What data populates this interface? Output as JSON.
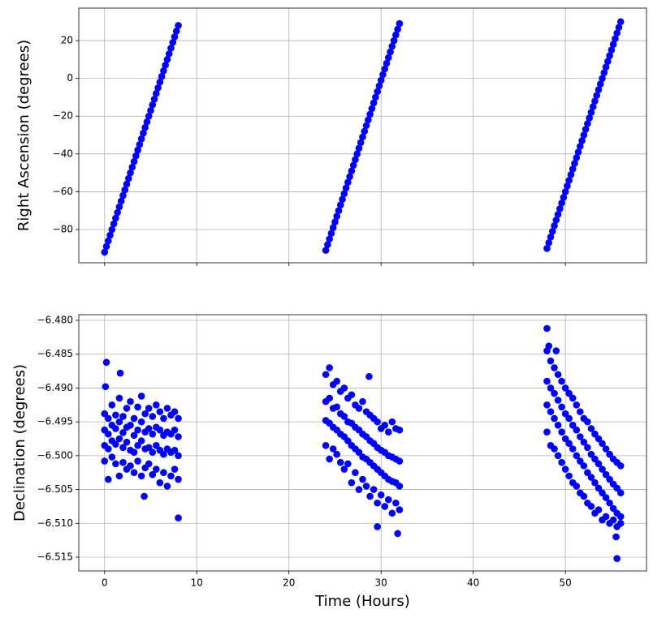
{
  "chart_data": [
    {
      "type": "scatter",
      "ylabel": "Right Ascension (degrees)",
      "xlim": [
        -2.8,
        58.8
      ],
      "ylim": [
        -97.6,
        37.2
      ],
      "xticks": [
        0,
        10,
        20,
        30,
        40,
        50
      ],
      "show_xtick_labels": false,
      "yticks": [
        {
          "value": -80,
          "label": "−80"
        },
        {
          "value": -60,
          "label": "−60"
        },
        {
          "value": -40,
          "label": "−40"
        },
        {
          "value": -20,
          "label": "−20"
        },
        0,
        20
      ],
      "grid": true,
      "x": [
        0,
        0.2,
        0.4,
        0.6,
        0.8,
        1,
        1.2,
        1.4,
        1.6,
        1.8,
        2,
        2.2,
        2.4,
        2.6,
        2.8,
        3,
        3.2,
        3.4,
        3.6,
        3.8,
        4,
        4.2,
        4.4,
        4.6,
        4.8,
        5,
        5.2,
        5.4,
        5.6,
        5.8,
        6,
        6.2,
        6.4,
        6.6,
        6.8,
        7,
        7.2,
        7.4,
        7.6,
        7.8,
        8,
        24,
        24.2,
        24.4,
        24.6,
        24.8,
        25,
        25.2,
        25.4,
        25.6,
        25.8,
        26,
        26.2,
        26.4,
        26.6,
        26.8,
        27,
        27.2,
        27.4,
        27.6,
        27.8,
        28,
        28.2,
        28.4,
        28.6,
        28.8,
        29,
        29.2,
        29.4,
        29.6,
        29.8,
        30,
        30.2,
        30.4,
        30.6,
        30.8,
        31,
        31.2,
        31.4,
        31.6,
        31.8,
        32,
        48,
        48.2,
        48.4,
        48.6,
        48.8,
        49,
        49.2,
        49.4,
        49.6,
        49.8,
        50,
        50.2,
        50.4,
        50.6,
        50.8,
        51,
        51.2,
        51.4,
        51.6,
        51.8,
        52,
        52.2,
        52.4,
        52.6,
        52.8,
        53,
        53.2,
        53.4,
        53.6,
        53.8,
        54,
        54.2,
        54.4,
        54.6,
        54.8,
        55,
        55.2,
        55.4,
        55.6,
        55.8,
        56
      ],
      "series": [
        {
          "color": "#0000ff",
          "values": [
            -92,
            -89,
            -86,
            -83,
            -80,
            -77,
            -74,
            -71,
            -68,
            -65,
            -62,
            -59,
            -56,
            -53,
            -50,
            -47,
            -44,
            -41,
            -38,
            -35,
            -32,
            -29,
            -26,
            -23,
            -20,
            -17,
            -14,
            -11,
            -8,
            -5,
            -2,
            1,
            4,
            7,
            10,
            13,
            16,
            19,
            22,
            25,
            28,
            -91,
            -88,
            -85,
            -82,
            -79,
            -76,
            -73,
            -70,
            -67,
            -64,
            -61,
            -58,
            -55,
            -52,
            -49,
            -46,
            -43,
            -40,
            -37,
            -34,
            -31,
            -28,
            -25,
            -22,
            -19,
            -16,
            -13,
            -10,
            -7,
            -4,
            -1,
            2,
            5,
            8,
            11,
            14,
            17,
            20,
            23,
            26,
            29,
            -90,
            -87,
            -84,
            -81,
            -78,
            -75,
            -72,
            -69,
            -66,
            -63,
            -60,
            -57,
            -54,
            -51,
            -48,
            -45,
            -42,
            -39,
            -36,
            -33,
            -30,
            -27,
            -24,
            -21,
            -18,
            -15,
            -12,
            -9,
            -6,
            -3,
            0,
            3,
            6,
            9,
            12,
            15,
            18,
            21,
            24,
            27,
            30
          ]
        }
      ]
    },
    {
      "type": "scatter",
      "xlabel": "Time (Hours)",
      "ylabel": "Declination (degrees)",
      "xlim": [
        -2.8,
        58.8
      ],
      "ylim": [
        -6.51704,
        -6.47916
      ],
      "xticks": [
        0,
        10,
        20,
        30,
        40,
        50
      ],
      "show_xtick_labels": true,
      "yticks": [
        {
          "value": -6.515,
          "label": "−6.515"
        },
        {
          "value": -6.51,
          "label": "−6.510"
        },
        {
          "value": -6.505,
          "label": "−6.505"
        },
        {
          "value": -6.5,
          "label": "−6.500"
        },
        {
          "value": -6.495,
          "label": "−6.495"
        },
        {
          "value": -6.49,
          "label": "−6.490"
        },
        {
          "value": -6.485,
          "label": "−6.485"
        },
        {
          "value": -6.48,
          "label": "−6.480"
        }
      ],
      "grid": true,
      "x": [
        0,
        0,
        0,
        0,
        0.4,
        0.4,
        0.4,
        0.4,
        0.8,
        0.8,
        0.8,
        0.8,
        1.2,
        1.2,
        1.2,
        1.2,
        1.6,
        1.6,
        1.6,
        1.6,
        2,
        2,
        2,
        2,
        2.4,
        2.4,
        2.4,
        2.4,
        2.8,
        2.8,
        2.8,
        2.8,
        3.2,
        3.2,
        3.2,
        3.2,
        3.6,
        3.6,
        3.6,
        3.6,
        4,
        4,
        4,
        4,
        4.4,
        4.4,
        4.4,
        4.4,
        4.8,
        4.8,
        4.8,
        4.8,
        5.2,
        5.2,
        5.2,
        5.2,
        5.6,
        5.6,
        5.6,
        5.6,
        6,
        6,
        6,
        6,
        6.4,
        6.4,
        6.4,
        6.4,
        6.8,
        6.8,
        6.8,
        6.8,
        7.2,
        7.2,
        7.2,
        7.2,
        7.6,
        7.6,
        7.6,
        7.6,
        8,
        8,
        8,
        8,
        0.2,
        8,
        4.3,
        0.1,
        1.7,
        24,
        24,
        24,
        24,
        24.4,
        24.4,
        24.4,
        24.4,
        24.8,
        24.8,
        24.8,
        24.8,
        25.2,
        25.2,
        25.2,
        25.2,
        25.6,
        25.6,
        25.6,
        25.6,
        26,
        26,
        26,
        26,
        26.4,
        26.4,
        26.4,
        26.4,
        26.8,
        26.8,
        26.8,
        26.8,
        27.2,
        27.2,
        27.2,
        27.2,
        27.6,
        27.6,
        27.6,
        27.6,
        28,
        28,
        28,
        28,
        28.4,
        28.4,
        28.4,
        28.4,
        28.8,
        28.8,
        28.8,
        28.8,
        29.2,
        29.2,
        29.2,
        29.2,
        29.6,
        29.6,
        29.6,
        29.6,
        30,
        30,
        30,
        30,
        30.4,
        30.4,
        30.4,
        30.4,
        30.8,
        30.8,
        30.8,
        30.8,
        31.2,
        31.2,
        31.2,
        31.2,
        31.6,
        31.6,
        31.6,
        31.6,
        32,
        32,
        32,
        32,
        29.6,
        31.8,
        28.7,
        48,
        48,
        48,
        48,
        48.4,
        48.4,
        48.4,
        48.4,
        48.8,
        48.8,
        48.8,
        48.8,
        49.2,
        49.2,
        49.2,
        49.2,
        49.6,
        49.6,
        49.6,
        49.6,
        50,
        50,
        50,
        50,
        50.4,
        50.4,
        50.4,
        50.4,
        50.8,
        50.8,
        50.8,
        50.8,
        51.2,
        51.2,
        51.2,
        51.2,
        51.6,
        51.6,
        51.6,
        51.6,
        52,
        52,
        52,
        52,
        52.4,
        52.4,
        52.4,
        52.4,
        52.8,
        52.8,
        52.8,
        52.8,
        53.2,
        53.2,
        53.2,
        53.2,
        53.6,
        53.6,
        53.6,
        53.6,
        54,
        54,
        54,
        54,
        54.4,
        54.4,
        54.4,
        54.4,
        54.8,
        54.8,
        54.8,
        54.8,
        55.2,
        55.2,
        55.2,
        55.2,
        55.6,
        55.6,
        55.6,
        55.6,
        56,
        56,
        56,
        56,
        48,
        48.2,
        55.6,
        55.5,
        49
      ],
      "series": [
        {
          "color": "#0000ff",
          "values": [
            -6.4938,
            -6.4962,
            -6.4985,
            -6.5008,
            -6.4945,
            -6.4968,
            -6.499,
            -6.5035,
            -6.4925,
            -6.4955,
            -6.4978,
            -6.5002,
            -6.494,
            -6.496,
            -6.4983,
            -6.5012,
            -6.4915,
            -6.495,
            -6.4975,
            -6.503,
            -6.4942,
            -6.4966,
            -6.4988,
            -6.501,
            -6.493,
            -6.4958,
            -6.498,
            -6.502,
            -6.492,
            -6.4955,
            -6.4992,
            -6.5015,
            -6.4945,
            -6.497,
            -6.4995,
            -6.5025,
            -6.4928,
            -6.4962,
            -6.4985,
            -6.5008,
            -6.4912,
            -6.495,
            -6.4978,
            -6.503,
            -6.4938,
            -6.4965,
            -6.499,
            -6.5018,
            -6.493,
            -6.496,
            -6.4988,
            -6.5012,
            -6.4942,
            -6.4968,
            -6.4995,
            -6.5028,
            -6.4925,
            -6.4958,
            -6.4985,
            -6.502,
            -6.4935,
            -6.4962,
            -6.4992,
            -6.504,
            -6.4945,
            -6.497,
            -6.4998,
            -6.5025,
            -6.493,
            -6.4965,
            -6.499,
            -6.5045,
            -6.494,
            -6.4968,
            -6.4995,
            -6.503,
            -6.4935,
            -6.4962,
            -6.4992,
            -6.502,
            -6.4945,
            -6.4972,
            -6.5,
            -6.5035,
            -6.4862,
            -6.5092,
            -6.506,
            -6.4898,
            -6.4878,
            -6.488,
            -6.492,
            -6.4948,
            -6.4985,
            -6.487,
            -6.4915,
            -6.4952,
            -6.5005,
            -6.4895,
            -6.493,
            -6.4958,
            -6.499,
            -6.489,
            -6.4928,
            -6.4962,
            -6.4998,
            -6.4905,
            -6.4938,
            -6.4968,
            -6.501,
            -6.49,
            -6.4942,
            -6.4972,
            -6.502,
            -6.4915,
            -6.495,
            -6.4978,
            -6.5012,
            -6.491,
            -6.4952,
            -6.4985,
            -6.504,
            -6.4925,
            -6.4958,
            -6.499,
            -6.5025,
            -6.493,
            -6.4962,
            -6.4995,
            -6.505,
            -6.492,
            -6.4968,
            -6.5002,
            -6.5035,
            -6.4935,
            -6.4972,
            -6.5005,
            -6.5045,
            -6.494,
            -6.4978,
            -6.501,
            -6.506,
            -6.4945,
            -6.4982,
            -6.5015,
            -6.505,
            -6.495,
            -6.4988,
            -6.502,
            -6.507,
            -6.496,
            -6.4992,
            -6.5025,
            -6.5058,
            -6.4955,
            -6.4995,
            -6.503,
            -6.5075,
            -6.4965,
            -6.5,
            -6.5035,
            -6.5065,
            -6.495,
            -6.5002,
            -6.5038,
            -6.5085,
            -6.496,
            -6.5005,
            -6.504,
            -6.507,
            -6.4962,
            -6.5008,
            -6.5045,
            -6.508,
            -6.5105,
            -6.5115,
            -6.4883,
            -6.4845,
            -6.489,
            -6.4925,
            -6.4965,
            -6.486,
            -6.49,
            -6.4935,
            -6.4985,
            -6.487,
            -6.4908,
            -6.4945,
            -6.499,
            -6.488,
            -6.4918,
            -6.4955,
            -6.5,
            -6.489,
            -6.4928,
            -6.4965,
            -6.501,
            -6.49,
            -6.4938,
            -6.4975,
            -6.502,
            -6.4908,
            -6.4945,
            -6.4982,
            -6.503,
            -6.4915,
            -6.4955,
            -6.499,
            -6.504,
            -6.4925,
            -6.4962,
            -6.5,
            -6.5045,
            -6.4935,
            -6.4972,
            -6.5008,
            -6.5055,
            -6.4945,
            -6.498,
            -6.5015,
            -6.506,
            -6.495,
            -6.4988,
            -6.5025,
            -6.507,
            -6.496,
            -6.4998,
            -6.5032,
            -6.5075,
            -6.4968,
            -6.5005,
            -6.504,
            -6.5085,
            -6.4975,
            -6.5012,
            -6.5048,
            -6.508,
            -6.4982,
            -6.502,
            -6.5055,
            -6.5095,
            -6.499,
            -6.5028,
            -6.5062,
            -6.509,
            -6.4998,
            -6.5035,
            -6.507,
            -6.51,
            -6.5005,
            -6.5042,
            -6.5078,
            -6.5095,
            -6.501,
            -6.5048,
            -6.5085,
            -6.5105,
            -6.5015,
            -6.5055,
            -6.509,
            -6.51,
            -6.4812,
            -6.4838,
            -6.5152,
            -6.512,
            -6.4845
          ]
        }
      ]
    }
  ]
}
